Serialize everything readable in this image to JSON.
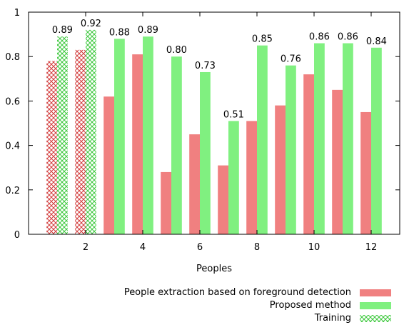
{
  "chart_data": {
    "type": "bar",
    "xlabel": "Peoples",
    "ylabel": "",
    "ylim": [
      0,
      1
    ],
    "yticks": [
      0,
      0.2,
      0.4,
      0.6,
      0.8,
      1
    ],
    "yticklabels": [
      "0",
      "0.2",
      "0.4",
      "0.6",
      "0.8",
      "1"
    ],
    "categories": [
      "1",
      "2",
      "3",
      "4",
      "5",
      "6",
      "7",
      "8",
      "9",
      "10",
      "11",
      "12"
    ],
    "xtick_labels": [
      "2",
      "4",
      "6",
      "8",
      "10",
      "12"
    ],
    "xtick_values": [
      2,
      4,
      6,
      8,
      10,
      12
    ],
    "grid": false,
    "legend_position": "bottom-right",
    "series": [
      {
        "name": "People extraction based on foreground detection",
        "color": "#f08080",
        "values": [
          0.78,
          0.83,
          0.62,
          0.81,
          0.28,
          0.45,
          0.31,
          0.51,
          0.58,
          0.72,
          0.65,
          0.55
        ],
        "training_points": [
          1,
          2
        ]
      },
      {
        "name": "Proposed method",
        "color": "#80f080",
        "values": [
          0.89,
          0.92,
          0.88,
          0.89,
          0.8,
          0.73,
          0.51,
          0.85,
          0.76,
          0.86,
          0.86,
          0.84
        ],
        "data_labels": [
          "0.89",
          "0.92",
          "0.88",
          "0.89",
          "0.80",
          "0.73",
          "0.51",
          "0.85",
          "0.76",
          "0.86",
          "0.86",
          "0.84"
        ],
        "training_points": [
          1,
          2
        ]
      }
    ],
    "legend": [
      {
        "label": "People extraction based on foreground detection",
        "swatch": "solid",
        "color": "#f08080"
      },
      {
        "label": "Proposed method",
        "swatch": "solid",
        "color": "#80f080"
      },
      {
        "label": "Training",
        "swatch": "hatched",
        "color": "#80f080"
      }
    ]
  }
}
